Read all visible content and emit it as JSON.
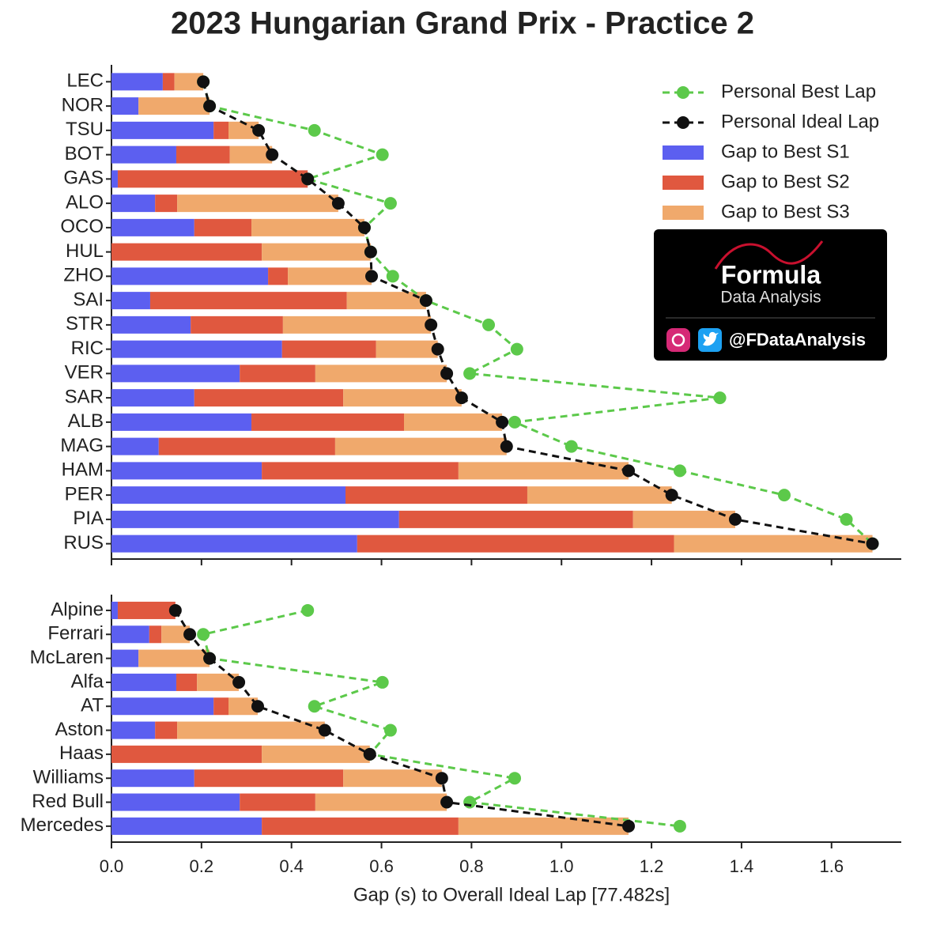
{
  "chart_data": [
    {
      "type": "barh-stacked",
      "title": "2023 Hungarian Grand Prix - Practice 2",
      "categories": [
        "LEC",
        "NOR",
        "TSU",
        "BOT",
        "GAS",
        "ALO",
        "OCO",
        "HUL",
        "ZHO",
        "SAI",
        "STR",
        "RIC",
        "VER",
        "SAR",
        "ALB",
        "MAG",
        "HAM",
        "PER",
        "PIA",
        "RUS"
      ],
      "xlim": [
        0,
        1.755
      ],
      "legend": "upper right",
      "series": [
        {
          "name": "Personal Best Lap",
          "type": "line",
          "color": "#5cc94a",
          "values": [
            0.204,
            0.218,
            0.451,
            0.602,
            0.436,
            0.62,
            0.562,
            0.576,
            0.625,
            0.699,
            0.838,
            0.901,
            0.796,
            1.352,
            0.896,
            1.022,
            1.263,
            1.495,
            1.633,
            1.691
          ]
        },
        {
          "name": "Personal Ideal Lap",
          "type": "line",
          "color": "#111111",
          "values": [
            0.204,
            0.218,
            0.327,
            0.357,
            0.436,
            0.504,
            0.562,
            0.576,
            0.578,
            0.699,
            0.71,
            0.725,
            0.745,
            0.778,
            0.868,
            0.878,
            1.149,
            1.245,
            1.386,
            1.691
          ]
        },
        {
          "name": "Gap to Best S1",
          "type": "bar",
          "color": "#5c5ff0",
          "values": [
            0.114,
            0.06,
            0.227,
            0.144,
            0.014,
            0.097,
            0.184,
            0,
            0.348,
            0.086,
            0.176,
            0.379,
            0.285,
            0.184,
            0.311,
            0.105,
            0.334,
            0.52,
            0.639,
            0.546
          ]
        },
        {
          "name": "Gap to Best S2",
          "type": "bar",
          "color": "#e0583f",
          "values": [
            0.026,
            0,
            0.033,
            0.119,
            0.422,
            0.049,
            0.127,
            0.334,
            0.044,
            0.437,
            0.205,
            0.209,
            0.168,
            0.331,
            0.339,
            0.392,
            0.437,
            0.404,
            0.52,
            0.704
          ]
        },
        {
          "name": "Gap to Best S3",
          "type": "bar",
          "color": "#f0a96c",
          "values": [
            0.064,
            0.158,
            0.067,
            0.094,
            0,
            0.358,
            0.251,
            0.242,
            0.186,
            0.176,
            0.329,
            0.137,
            0.292,
            0.263,
            0.218,
            0.381,
            0.378,
            0.321,
            0.227,
            0.441
          ]
        }
      ]
    },
    {
      "type": "barh-stacked",
      "categories": [
        "Alpine",
        "Ferrari",
        "McLaren",
        "Alfa",
        "AT",
        "Aston",
        "Haas",
        "Williams",
        "Red Bull",
        "Mercedes"
      ],
      "xlim": [
        0,
        1.755
      ],
      "xticks": [
        {
          "value": 0,
          "label": "0.0"
        },
        {
          "value": 0.2,
          "label": "0.2"
        },
        {
          "value": 0.4,
          "label": "0.4"
        },
        {
          "value": 0.6,
          "label": "0.6"
        },
        {
          "value": 0.8,
          "label": "0.8"
        },
        {
          "value": 1,
          "label": "1.0"
        },
        {
          "value": 1.2,
          "label": "1.2"
        },
        {
          "value": 1.4,
          "label": "1.4"
        },
        {
          "value": 1.6,
          "label": "1.6"
        }
      ],
      "xlabel": "Gap (s) to Overall Ideal Lap [77.482s]",
      "series": [
        {
          "type": "line",
          "color": "#5cc94a",
          "values": [
            0.436,
            0.204,
            0.218,
            0.602,
            0.451,
            0.62,
            0.574,
            0.896,
            0.796,
            1.263
          ]
        },
        {
          "type": "line",
          "color": "#111111",
          "values": [
            0.142,
            0.174,
            0.218,
            0.283,
            0.325,
            0.474,
            0.574,
            0.734,
            0.745,
            1.149
          ]
        },
        {
          "type": "bar",
          "color": "#5c5ff0",
          "values": [
            0.014,
            0.084,
            0.06,
            0.144,
            0.227,
            0.097,
            0,
            0.184,
            0.285,
            0.334
          ]
        },
        {
          "type": "bar",
          "color": "#e0583f",
          "values": [
            0.128,
            0.027,
            0,
            0.046,
            0.033,
            0.049,
            0.334,
            0.331,
            0.168,
            0.437
          ]
        },
        {
          "type": "bar",
          "color": "#f0a96c",
          "values": [
            0,
            0.063,
            0.158,
            0.093,
            0.065,
            0.328,
            0.24,
            0.219,
            0.292,
            0.378
          ]
        }
      ]
    }
  ],
  "watermark": {
    "brand": "Formula",
    "subtitle": "Data Analysis",
    "handle": "@FDataAnalysis"
  }
}
